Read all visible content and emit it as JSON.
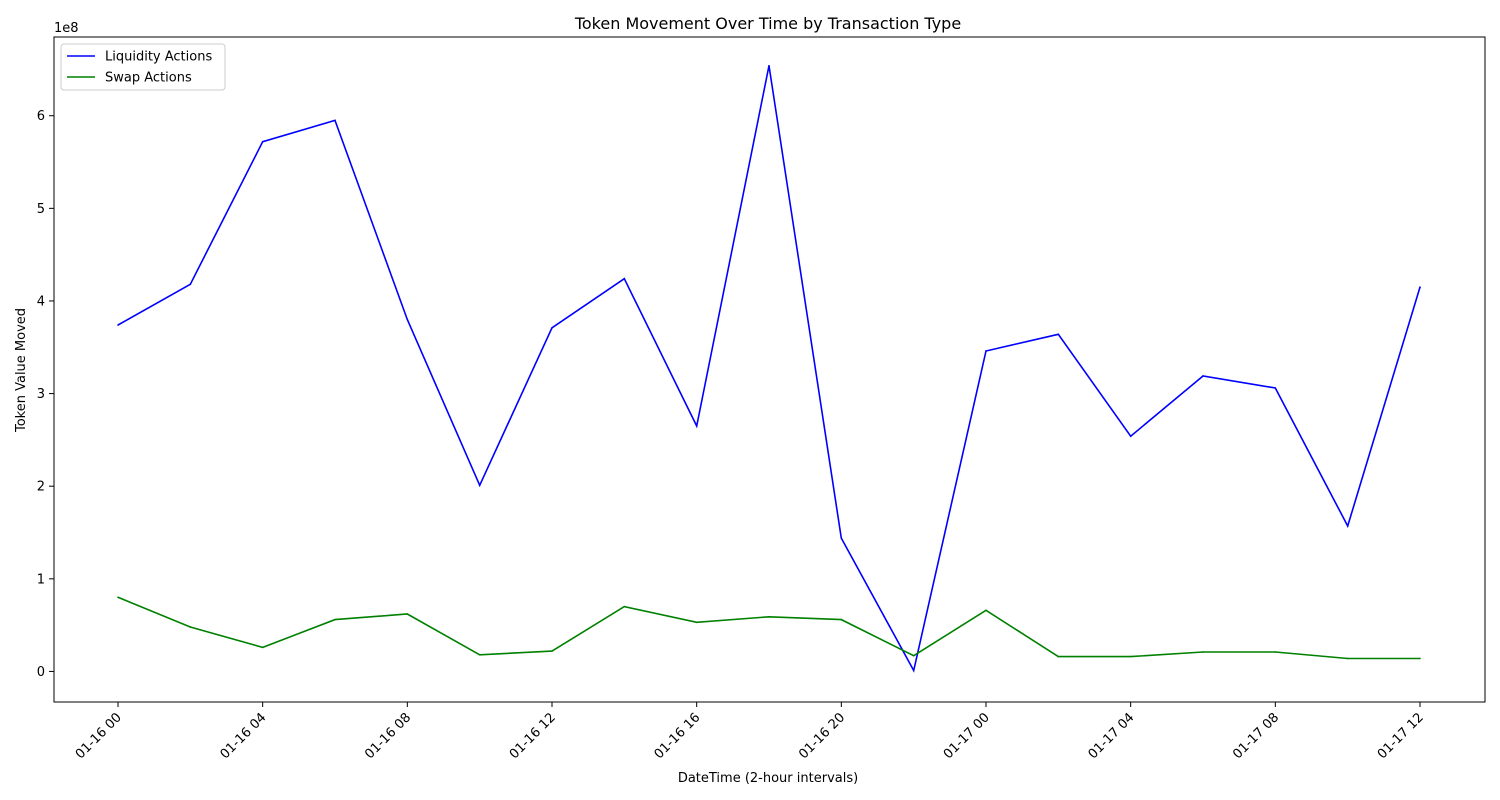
{
  "chart_data": {
    "type": "line",
    "title": "Token Movement Over Time by Transaction Type",
    "xlabel": "DateTime (2-hour intervals)",
    "ylabel": "Token Value Moved",
    "y_offset_label": "1e8",
    "x": [
      "2024-01-16 00:00",
      "2024-01-16 02:00",
      "2024-01-16 04:00",
      "2024-01-16 06:00",
      "2024-01-16 08:00",
      "2024-01-16 10:00",
      "2024-01-16 12:00",
      "2024-01-16 14:00",
      "2024-01-16 16:00",
      "2024-01-16 18:00",
      "2024-01-16 20:00",
      "2024-01-16 22:00",
      "2024-01-17 00:00",
      "2024-01-17 02:00",
      "2024-01-17 04:00",
      "2024-01-17 06:00",
      "2024-01-17 08:00",
      "2024-01-17 10:00",
      "2024-01-17 12:00"
    ],
    "x_ticks": [
      "01-16 00",
      "01-16 04",
      "01-16 08",
      "01-16 12",
      "01-16 16",
      "01-16 20",
      "01-17 00",
      "01-17 04",
      "01-17 08",
      "01-17 12"
    ],
    "y_ticks": [
      0,
      1,
      2,
      3,
      4,
      5,
      6
    ],
    "ylim": [
      -0.33,
      6.85
    ],
    "grid": false,
    "legend_position": "top-left",
    "series": [
      {
        "name": "Liquidity Actions",
        "color": "#0000ff",
        "values": [
          3.74,
          4.18,
          5.72,
          5.95,
          3.8,
          2.01,
          3.71,
          4.24,
          2.65,
          6.54,
          1.44,
          0.01,
          3.46,
          3.64,
          2.54,
          3.19,
          3.06,
          1.57,
          4.15
        ]
      },
      {
        "name": "Swap Actions",
        "color": "#008000",
        "values": [
          0.8,
          0.48,
          0.26,
          0.56,
          0.62,
          0.18,
          0.22,
          0.7,
          0.53,
          0.59,
          0.56,
          0.17,
          0.66,
          0.16,
          0.16,
          0.21,
          0.21,
          0.14,
          0.14
        ]
      }
    ]
  }
}
